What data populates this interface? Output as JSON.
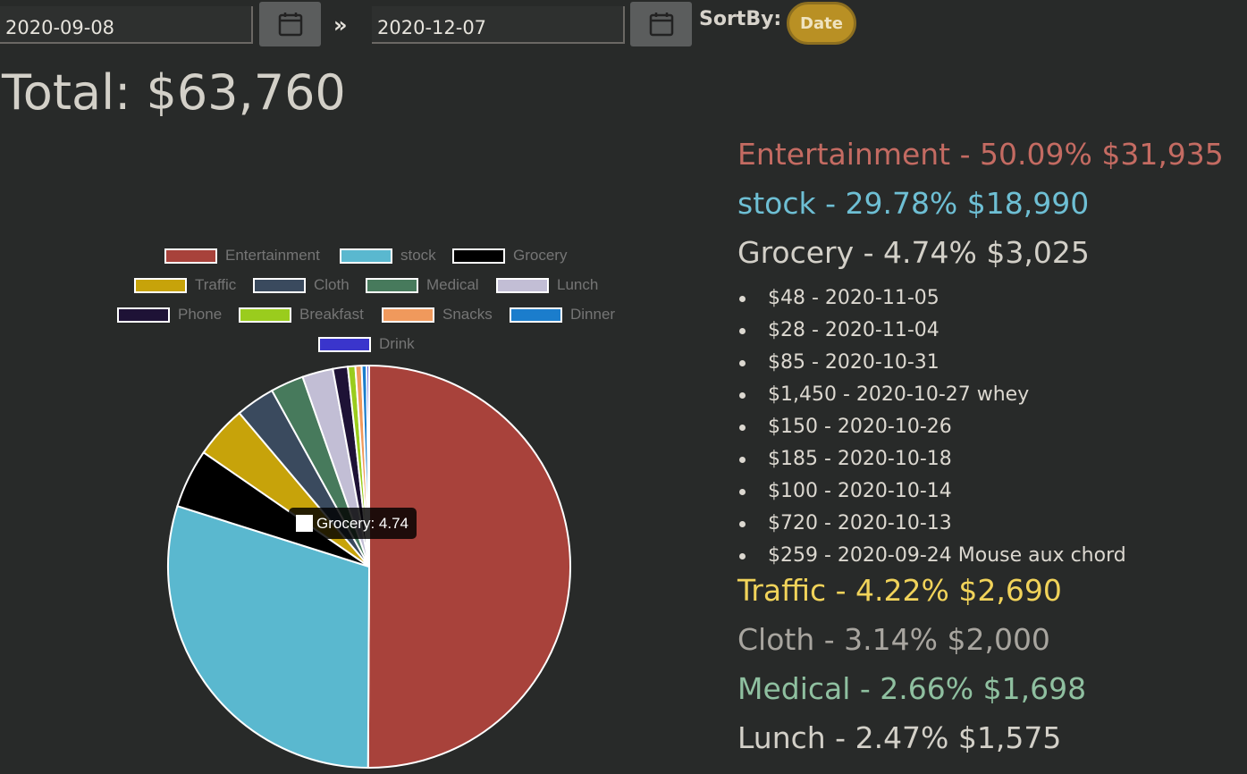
{
  "filters": {
    "start_date": "2020-09-08",
    "end_date": "2020-12-07",
    "range_separator": "»",
    "sort_label": "SortBy:",
    "sort_value": "Date"
  },
  "total": {
    "label": "Total: $63,760"
  },
  "chart_data": {
    "type": "pie",
    "legend_position": "top",
    "categories": [
      "Entertainment",
      "stock",
      "Grocery",
      "Traffic",
      "Cloth",
      "Medical",
      "Lunch",
      "Phone",
      "Breakfast",
      "Snacks",
      "Dinner",
      "Drink"
    ],
    "values": [
      50.09,
      29.78,
      4.74,
      4.22,
      3.14,
      2.66,
      2.47,
      1.2,
      0.6,
      0.5,
      0.4,
      0.2
    ],
    "colors": [
      "#a8423b",
      "#5ab8cf",
      "#000000",
      "#c7a30a",
      "#3a4a5e",
      "#477a5c",
      "#c2bed5",
      "#1e1236",
      "#9acc1d",
      "#f0995c",
      "#1b7dcc",
      "#3a35cc"
    ],
    "tooltip": {
      "label": "Grocery: 4.74",
      "category": "Grocery"
    }
  },
  "categories_panel": {
    "top": [
      {
        "label": "Entertainment - 50.09% $31,935",
        "color": "#c46b62"
      },
      {
        "label": "stock - 29.78% $18,990",
        "color": "#6ebfd4"
      },
      {
        "label": "Grocery - 4.74% $3,025",
        "color": "#d3d0c8"
      }
    ],
    "grocery_items": [
      "$48 - 2020-11-05",
      "$28 - 2020-11-04",
      "$85 - 2020-10-31",
      "$1,450 - 2020-10-27 whey",
      "$150 - 2020-10-26",
      "$185 - 2020-10-18",
      "$100 - 2020-10-14",
      "$720 - 2020-10-13",
      "$259 - 2020-09-24 Mouse aux chord"
    ],
    "bottom": [
      {
        "label": "Traffic - 4.22% $2,690",
        "color": "#f1d35a"
      },
      {
        "label": "Cloth - 3.14% $2,000",
        "color": "#a8a59f"
      },
      {
        "label": "Medical - 2.66% $1,698",
        "color": "#8fc0a0"
      },
      {
        "label": "Lunch - 2.47% $1,575",
        "color": "#d3d0c8"
      }
    ]
  },
  "icons": {
    "calendar": "calendar-icon",
    "double_chevron": "double-chevron-right-icon"
  }
}
